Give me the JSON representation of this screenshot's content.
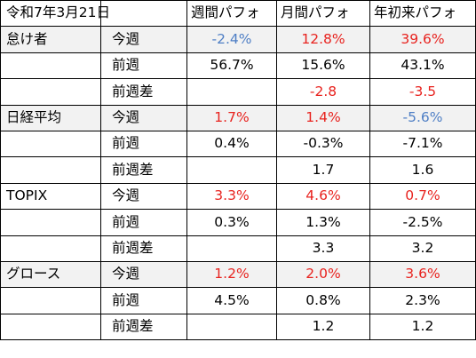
{
  "header": {
    "date": "令和7年3月21日",
    "col_weekly": "週間パフォ",
    "col_monthly": "月間パフォ",
    "col_ytd": "年初来パフォ"
  },
  "colors": {
    "positive": "#e8231f",
    "negative": "#4f7fc5",
    "shade": "#f2f2f2"
  },
  "groups": [
    {
      "name": "怠け者",
      "rows": [
        {
          "label": "今週",
          "weekly": "-2.4%",
          "monthly": "12.8%",
          "ytd": "39.6%"
        },
        {
          "label": "前週",
          "weekly": "56.7%",
          "monthly": "15.6%",
          "ytd": "43.1%"
        },
        {
          "label": "前週差",
          "weekly": "",
          "monthly": "-2.8",
          "ytd": "-3.5"
        }
      ]
    },
    {
      "name": "日経平均",
      "rows": [
        {
          "label": "今週",
          "weekly": "1.7%",
          "monthly": "1.4%",
          "ytd": "-5.6%"
        },
        {
          "label": "前週",
          "weekly": "0.4%",
          "monthly": "-0.3%",
          "ytd": "-7.1%"
        },
        {
          "label": "前週差",
          "weekly": "",
          "monthly": "1.7",
          "ytd": "1.6"
        }
      ]
    },
    {
      "name": "TOPIX",
      "rows": [
        {
          "label": "今週",
          "weekly": "3.3%",
          "monthly": "4.6%",
          "ytd": "0.7%"
        },
        {
          "label": "前週",
          "weekly": "0.3%",
          "monthly": "1.3%",
          "ytd": "-2.5%"
        },
        {
          "label": "前週差",
          "weekly": "",
          "monthly": "3.3",
          "ytd": "3.2"
        }
      ]
    },
    {
      "name": "グロース",
      "rows": [
        {
          "label": "今週",
          "weekly": "1.2%",
          "monthly": "2.0%",
          "ytd": "3.6%"
        },
        {
          "label": "前週",
          "weekly": "4.5%",
          "monthly": "0.8%",
          "ytd": "2.3%"
        },
        {
          "label": "前週差",
          "weekly": "",
          "monthly": "1.2",
          "ytd": "1.2"
        }
      ]
    }
  ]
}
